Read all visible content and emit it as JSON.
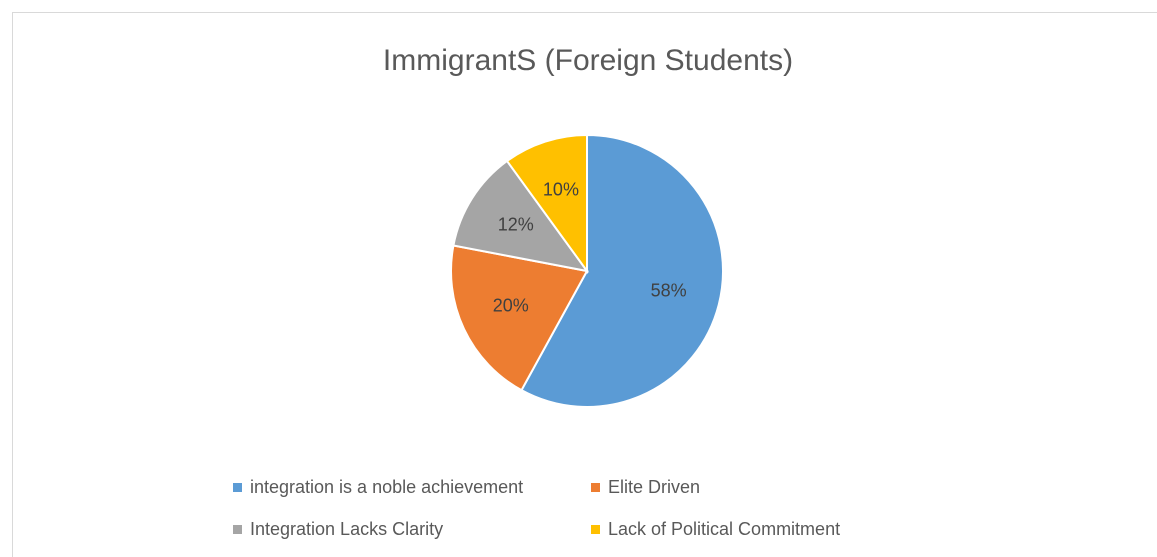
{
  "chart_data": {
    "type": "pie",
    "title": "ImmigrantS (Foreign Students)",
    "categories": [
      "integration is a noble achievement",
      "Elite Driven",
      "Integration Lacks Clarity",
      "Lack of Political Commitment"
    ],
    "values": [
      58,
      20,
      12,
      10
    ],
    "value_labels": [
      "58%",
      "20%",
      "12%",
      "10%"
    ],
    "colors": [
      "#5b9bd5",
      "#ed7d31",
      "#a5a5a5",
      "#ffc000"
    ],
    "legend": "bottom"
  }
}
